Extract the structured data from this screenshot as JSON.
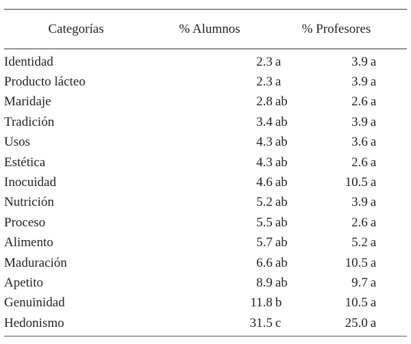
{
  "table": {
    "headers": [
      "Categorías",
      "% Alumnos",
      "% Profesores"
    ],
    "rows": [
      {
        "categoria": "Identidad",
        "alumnos": "2.3",
        "alumnos_grupo": "a",
        "profesores": "3.9",
        "profesores_grupo": "a"
      },
      {
        "categoria": "Producto lácteo",
        "alumnos": "2.3",
        "alumnos_grupo": "a",
        "profesores": "3.9",
        "profesores_grupo": "a"
      },
      {
        "categoria": "Maridaje",
        "alumnos": "2.8",
        "alumnos_grupo": "ab",
        "profesores": "2.6",
        "profesores_grupo": "a"
      },
      {
        "categoria": "Tradición",
        "alumnos": "3.4",
        "alumnos_grupo": "ab",
        "profesores": "3.9",
        "profesores_grupo": "a"
      },
      {
        "categoria": "Usos",
        "alumnos": "4.3",
        "alumnos_grupo": "ab",
        "profesores": "3.6",
        "profesores_grupo": "a"
      },
      {
        "categoria": "Estética",
        "alumnos": "4.3",
        "alumnos_grupo": "ab",
        "profesores": "2.6",
        "profesores_grupo": "a"
      },
      {
        "categoria": "Inocuidad",
        "alumnos": "4.6",
        "alumnos_grupo": "ab",
        "profesores": "10.5",
        "profesores_grupo": "a"
      },
      {
        "categoria": "Nutrición",
        "alumnos": "5.2",
        "alumnos_grupo": "ab",
        "profesores": "3.9",
        "profesores_grupo": "a"
      },
      {
        "categoria": "Proceso",
        "alumnos": "5.5",
        "alumnos_grupo": "ab",
        "profesores": "2.6",
        "profesores_grupo": "a"
      },
      {
        "categoria": "Alimento",
        "alumnos": "5.7",
        "alumnos_grupo": "ab",
        "profesores": "5.2",
        "profesores_grupo": "a"
      },
      {
        "categoria": "Maduración",
        "alumnos": "6.6",
        "alumnos_grupo": "ab",
        "profesores": "10.5",
        "profesores_grupo": "a"
      },
      {
        "categoria": "Apetito",
        "alumnos": "8.9",
        "alumnos_grupo": "ab",
        "profesores": "9.7",
        "profesores_grupo": "a"
      },
      {
        "categoria": "Genuinidad",
        "alumnos": "11.8",
        "alumnos_grupo": "b",
        "profesores": "10.5",
        "profesores_grupo": "a"
      },
      {
        "categoria": "Hedonismo",
        "alumnos": "31.5",
        "alumnos_grupo": "c",
        "profesores": "25.0",
        "profesores_grupo": "a"
      }
    ]
  }
}
